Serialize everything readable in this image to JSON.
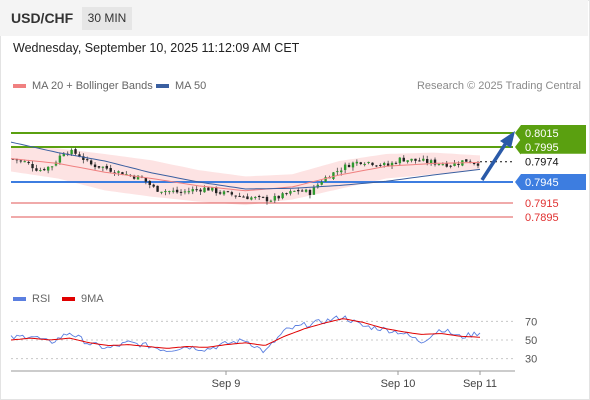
{
  "header": {
    "symbol": "USD/CHF",
    "timeframe": "30 MIN",
    "datetime": "Wednesday, September 10, 2025 11:12:09 AM CET"
  },
  "legend_main": {
    "item1": "MA 20 + Bollinger Bands",
    "item2": "MA 50",
    "color1": "#f08080",
    "color2": "#3a5fa0"
  },
  "copyright": "Research © 2025 Trading Central",
  "legend_rsi": {
    "item1": "RSI",
    "item2": "9MA",
    "color1": "#5b7fe0",
    "color2": "#e00000"
  },
  "chart_data": {
    "type": "candlestick",
    "price_range": [
      0.7885,
      0.8025
    ],
    "levels": [
      {
        "value": 0.8015,
        "label": "0.8015",
        "kind": "resistance",
        "color": "#5aa010"
      },
      {
        "value": 0.7995,
        "label": "0.7995",
        "kind": "resistance",
        "color": "#5aa010"
      },
      {
        "value": 0.7974,
        "label": "0.7974",
        "kind": "current",
        "color": "#111111"
      },
      {
        "value": 0.7945,
        "label": "0.7945",
        "kind": "pivot",
        "color": "#3d7de0"
      },
      {
        "value": 0.7915,
        "label": "0.7915",
        "kind": "support",
        "color": "#e05555"
      },
      {
        "value": 0.7895,
        "label": "0.7895",
        "kind": "support",
        "color": "#e05555"
      }
    ],
    "x_labels": [
      "Sep 9",
      "Sep 10",
      "Sep 11"
    ],
    "rsi_levels": [
      70,
      50,
      30
    ],
    "close_anchors": [
      0.7978,
      0.7973,
      0.7962,
      0.7968,
      0.799,
      0.7985,
      0.797,
      0.7966,
      0.796,
      0.7955,
      0.795,
      0.7935,
      0.7932,
      0.793,
      0.7934,
      0.7936,
      0.793,
      0.7927,
      0.7924,
      0.7921,
      0.792,
      0.7926,
      0.7933,
      0.793,
      0.7949,
      0.796,
      0.797,
      0.7975,
      0.7972,
      0.7968,
      0.7978,
      0.7976,
      0.7974,
      0.7972,
      0.797,
      0.7976,
      0.7972
    ],
    "ma50_anchors": [
      0.8002,
      0.7987,
      0.7975,
      0.7958,
      0.7945,
      0.7935,
      0.7936,
      0.794,
      0.7946,
      0.7955,
      0.7963
    ],
    "bb_upper_anchors": [
      0.7997,
      0.7993,
      0.7985,
      0.7976,
      0.7962,
      0.7953,
      0.7956,
      0.7975,
      0.7985,
      0.7987,
      0.7983
    ],
    "bb_lower_anchors": [
      0.796,
      0.795,
      0.7933,
      0.7924,
      0.7917,
      0.7912,
      0.792,
      0.7935,
      0.795,
      0.7956,
      0.7963
    ],
    "rsi_anchors": [
      52,
      55,
      47,
      58,
      46,
      41,
      47,
      44,
      39,
      43,
      40,
      46,
      50,
      37,
      60,
      66,
      70,
      75,
      65,
      62,
      58,
      48,
      62,
      53,
      58
    ],
    "rsi_ma_anchors": [
      50,
      52,
      50,
      52,
      47,
      44,
      45,
      43,
      41,
      43,
      42,
      45,
      47,
      44,
      54,
      62,
      68,
      73,
      69,
      63,
      59,
      56,
      57,
      54,
      53
    ]
  }
}
